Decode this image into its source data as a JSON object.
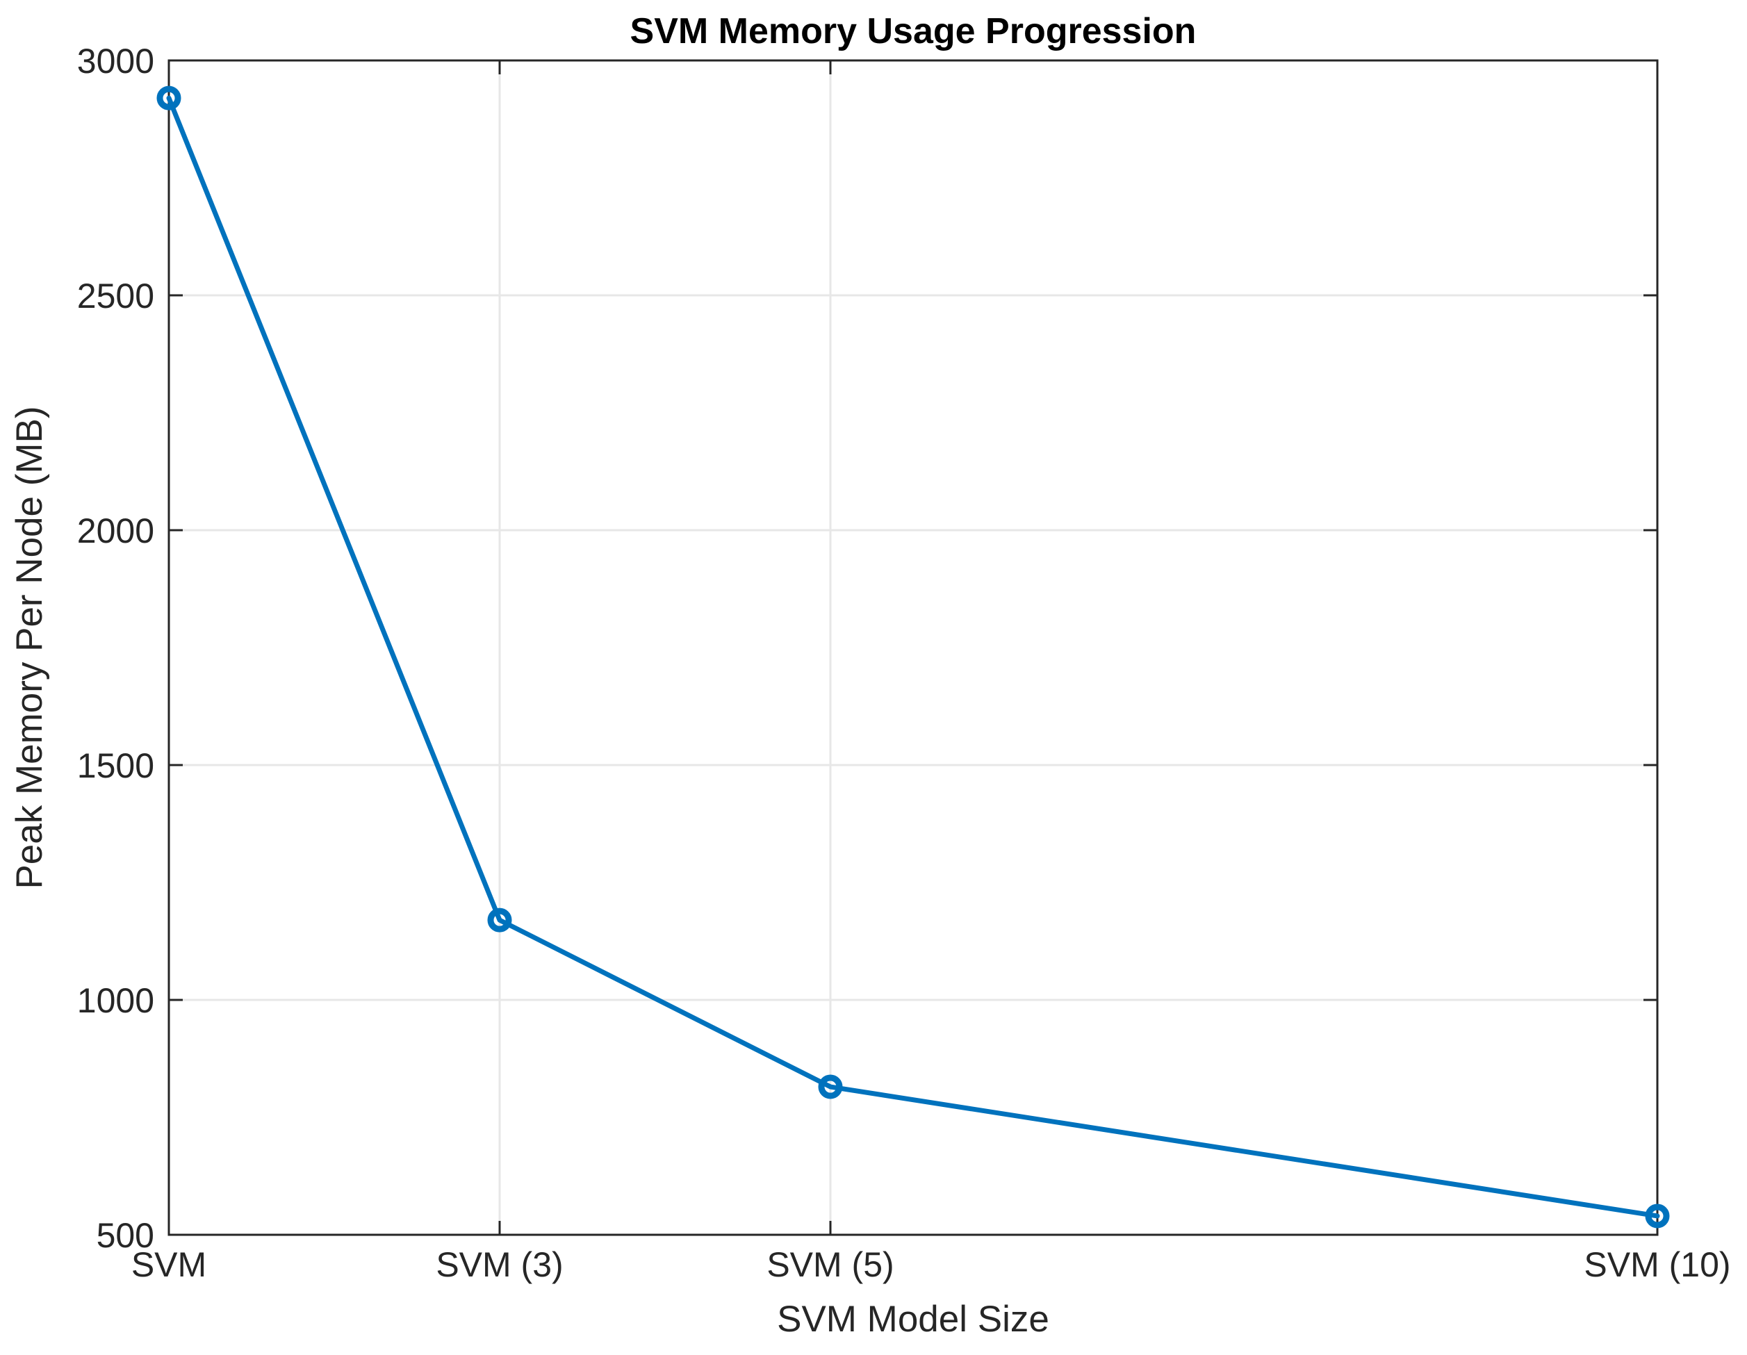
{
  "chart_data": {
    "type": "line",
    "title": "SVM Memory Usage Progression",
    "xlabel": "SVM Model Size",
    "ylabel": "Peak Memory Per Node (MB)",
    "categories": [
      "SVM",
      "SVM (3)",
      "SVM (5)",
      "SVM (10)"
    ],
    "x": [
      1,
      3,
      5,
      10
    ],
    "series": [
      {
        "name": "Peak Memory Per Node (MB)",
        "values": [
          2920,
          1170,
          815,
          540
        ]
      }
    ],
    "xlim": [
      1,
      10
    ],
    "ylim": [
      500,
      3000
    ],
    "yticks": [
      500,
      1000,
      1500,
      2000,
      2500,
      3000
    ],
    "grid": true,
    "legend_visible": false,
    "marker": "open-circle",
    "line_color": "#0072BD",
    "axis_color": "#262626",
    "grid_color": "#e7e7e7",
    "title_color": "#000000",
    "background": "#ffffff"
  }
}
